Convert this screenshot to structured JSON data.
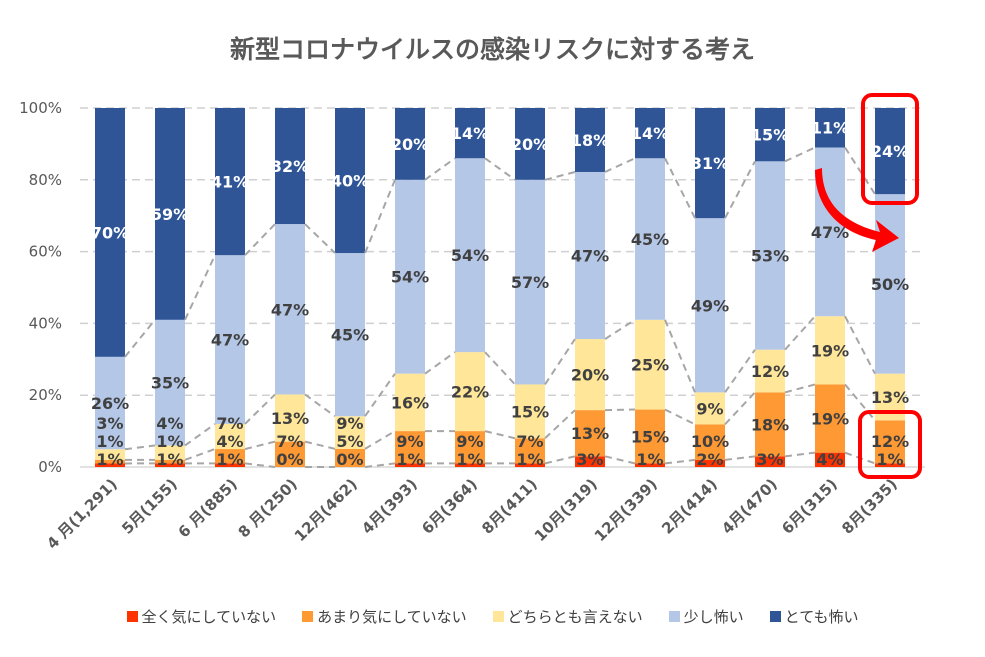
{
  "chart_data": {
    "type": "bar",
    "stacked": true,
    "percent": true,
    "title": "新型コロナウイルスの感染リスクに対する考え",
    "categories": [
      "4 月(1,291)",
      "5月(155)",
      "6 月(885)",
      "8 月(250)",
      "12月(462)",
      "4月(393)",
      "6月(364)",
      "8月(411)",
      "10月(319)",
      "12月(339)",
      "2月(414)",
      "4月(470)",
      "6月(315)",
      "8月(335)"
    ],
    "series": [
      {
        "name": "全く気にしていない",
        "color": "#FF3300",
        "values": [
          1,
          1,
          1,
          0,
          0,
          1,
          1,
          1,
          3,
          1,
          2,
          3,
          4,
          1
        ]
      },
      {
        "name": "あまり気にしていない",
        "color": "#FF9933",
        "values": [
          1,
          1,
          4,
          7,
          5,
          9,
          9,
          7,
          13,
          15,
          10,
          18,
          19,
          12
        ]
      },
      {
        "name": "どちらとも言えない",
        "color": "#FFE699",
        "values": [
          3,
          4,
          7,
          13,
          9,
          16,
          22,
          15,
          20,
          25,
          9,
          12,
          19,
          13
        ]
      },
      {
        "name": "少し怖い",
        "color": "#B4C7E7",
        "values": [
          26,
          35,
          47,
          47,
          45,
          54,
          54,
          57,
          47,
          45,
          49,
          53,
          47,
          50
        ]
      },
      {
        "name": "とても怖い",
        "color": "#2F5597",
        "values": [
          70,
          59,
          41,
          32,
          40,
          20,
          14,
          20,
          18,
          14,
          31,
          15,
          11,
          24
        ]
      }
    ],
    "yticks": [
      "0%",
      "20%",
      "40%",
      "60%",
      "80%",
      "100%"
    ],
    "ylim": [
      0,
      100
    ],
    "grid": true,
    "series_lines": true,
    "legend": "bottom",
    "highlight_color": "#FF0000"
  }
}
